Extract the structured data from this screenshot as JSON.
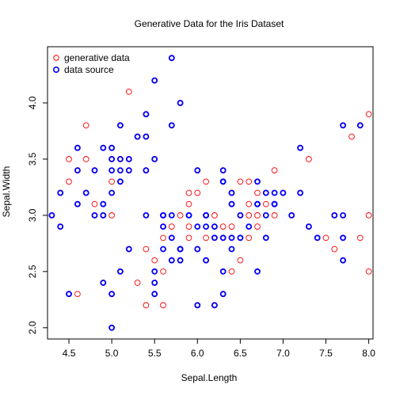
{
  "chart_data": {
    "type": "scatter",
    "title": "Generative Data for the Iris Dataset",
    "xlabel": "Sepal.Length",
    "ylabel": "Sepal.Width",
    "xlim": [
      4.25,
      8.05
    ],
    "ylim": [
      1.9,
      4.5
    ],
    "x_ticks": [
      4.5,
      5.0,
      5.5,
      6.0,
      6.5,
      7.0,
      7.5,
      8.0
    ],
    "x_tick_labels": [
      "4.5",
      "5.0",
      "5.5",
      "6.0",
      "6.5",
      "7.0",
      "7.5",
      "8.0"
    ],
    "y_ticks": [
      2.0,
      2.5,
      3.0,
      3.5,
      4.0
    ],
    "y_tick_labels": [
      "2.0",
      "2.5",
      "3.0",
      "3.5",
      "4.0"
    ],
    "grid": false,
    "legend_position": "top-left",
    "colors": {
      "generative": "#ff0000",
      "source": "#0000ff"
    },
    "series": [
      {
        "name": "generative data",
        "color": "#ff0000",
        "marker": "open-circle",
        "points": [
          [
            4.3,
            3.0
          ],
          [
            4.4,
            2.9
          ],
          [
            4.4,
            3.2
          ],
          [
            4.5,
            3.3
          ],
          [
            4.5,
            3.5
          ],
          [
            4.6,
            3.1
          ],
          [
            4.6,
            3.4
          ],
          [
            4.7,
            3.2
          ],
          [
            4.7,
            3.5
          ],
          [
            4.8,
            3.1
          ],
          [
            4.8,
            3.4
          ],
          [
            4.8,
            3.0
          ],
          [
            4.9,
            3.0
          ],
          [
            4.9,
            3.1
          ],
          [
            4.9,
            3.6
          ],
          [
            5.0,
            3.3
          ],
          [
            5.0,
            3.5
          ],
          [
            5.0,
            3.6
          ],
          [
            5.0,
            3.0
          ],
          [
            5.1,
            3.5
          ],
          [
            5.1,
            3.8
          ],
          [
            5.1,
            3.3
          ],
          [
            5.2,
            3.4
          ],
          [
            5.2,
            3.5
          ],
          [
            5.2,
            4.1
          ],
          [
            5.3,
            3.7
          ],
          [
            5.4,
            3.9
          ],
          [
            5.4,
            3.4
          ],
          [
            5.4,
            3.7
          ],
          [
            5.5,
            4.2
          ],
          [
            5.5,
            3.5
          ],
          [
            5.7,
            4.4
          ],
          [
            5.7,
            3.8
          ],
          [
            5.8,
            4.0
          ],
          [
            5.6,
            3.0
          ],
          [
            5.9,
            3.2
          ],
          [
            4.6,
            3.6
          ],
          [
            4.7,
            3.8
          ],
          [
            4.5,
            2.3
          ],
          [
            4.6,
            2.3
          ],
          [
            5.0,
            2.0
          ],
          [
            5.0,
            2.3
          ],
          [
            4.9,
            2.4
          ],
          [
            5.1,
            2.5
          ],
          [
            5.2,
            2.7
          ],
          [
            5.3,
            2.4
          ],
          [
            5.4,
            2.2
          ],
          [
            5.5,
            2.4
          ],
          [
            5.6,
            2.5
          ],
          [
            5.7,
            2.6
          ],
          [
            5.8,
            2.7
          ],
          [
            5.9,
            2.8
          ],
          [
            6.0,
            2.2
          ],
          [
            6.1,
            2.6
          ],
          [
            6.2,
            2.2
          ],
          [
            6.3,
            2.3
          ],
          [
            6.4,
            2.5
          ],
          [
            6.5,
            2.6
          ],
          [
            6.6,
            2.8
          ],
          [
            6.7,
            2.9
          ],
          [
            5.5,
            2.6
          ],
          [
            5.6,
            2.8
          ],
          [
            5.7,
            2.9
          ],
          [
            5.8,
            3.0
          ],
          [
            5.9,
            3.1
          ],
          [
            6.0,
            3.2
          ],
          [
            6.1,
            3.0
          ],
          [
            6.2,
            2.9
          ],
          [
            6.3,
            2.8
          ],
          [
            6.4,
            2.9
          ],
          [
            6.5,
            3.0
          ],
          [
            6.6,
            3.1
          ],
          [
            6.7,
            3.2
          ],
          [
            6.8,
            3.1
          ],
          [
            6.9,
            3.0
          ],
          [
            7.0,
            3.2
          ],
          [
            6.0,
            3.4
          ],
          [
            6.1,
            3.3
          ],
          [
            6.3,
            3.4
          ],
          [
            6.5,
            3.3
          ],
          [
            6.7,
            3.3
          ],
          [
            6.9,
            3.4
          ],
          [
            7.1,
            3.0
          ],
          [
            7.2,
            3.2
          ],
          [
            7.3,
            2.9
          ],
          [
            7.4,
            2.8
          ],
          [
            7.6,
            3.0
          ],
          [
            7.7,
            2.6
          ],
          [
            7.7,
            2.8
          ],
          [
            7.7,
            3.8
          ],
          [
            7.8,
            3.7
          ],
          [
            7.9,
            3.8
          ],
          [
            8.0,
            3.9
          ],
          [
            7.2,
            3.6
          ],
          [
            7.3,
            3.5
          ],
          [
            7.5,
            2.8
          ],
          [
            7.6,
            2.7
          ],
          [
            7.9,
            2.8
          ],
          [
            8.0,
            3.0
          ],
          [
            8.0,
            2.5
          ],
          [
            5.4,
            2.7
          ],
          [
            5.6,
            2.9
          ],
          [
            5.8,
            2.6
          ],
          [
            6.0,
            2.7
          ],
          [
            6.2,
            2.8
          ],
          [
            6.4,
            3.1
          ],
          [
            6.6,
            3.0
          ],
          [
            6.8,
            3.2
          ],
          [
            5.7,
            2.8
          ],
          [
            5.9,
            2.9
          ],
          [
            6.1,
            2.8
          ],
          [
            6.3,
            2.9
          ],
          [
            6.5,
            2.8
          ],
          [
            6.7,
            3.0
          ],
          [
            6.9,
            3.1
          ],
          [
            6.2,
            3.0
          ],
          [
            6.4,
            3.2
          ],
          [
            6.6,
            3.3
          ],
          [
            5.5,
            2.3
          ],
          [
            5.6,
            2.2
          ]
        ]
      },
      {
        "name": "data source",
        "color": "#0000ff",
        "marker": "open-circle",
        "points": [
          [
            5.1,
            3.5
          ],
          [
            4.9,
            3.0
          ],
          [
            4.7,
            3.2
          ],
          [
            4.6,
            3.1
          ],
          [
            5.0,
            3.6
          ],
          [
            5.4,
            3.9
          ],
          [
            4.6,
            3.4
          ],
          [
            5.0,
            3.4
          ],
          [
            4.4,
            2.9
          ],
          [
            4.9,
            3.1
          ],
          [
            5.4,
            3.7
          ],
          [
            4.8,
            3.4
          ],
          [
            4.8,
            3.0
          ],
          [
            4.3,
            3.0
          ],
          [
            5.8,
            4.0
          ],
          [
            5.7,
            4.4
          ],
          [
            5.1,
            3.8
          ],
          [
            5.7,
            3.8
          ],
          [
            5.4,
            3.4
          ],
          [
            4.6,
            3.6
          ],
          [
            5.1,
            3.3
          ],
          [
            5.2,
            3.5
          ],
          [
            5.2,
            3.4
          ],
          [
            5.5,
            4.2
          ],
          [
            5.0,
            3.2
          ],
          [
            5.5,
            3.5
          ],
          [
            4.9,
            3.6
          ],
          [
            4.4,
            3.2
          ],
          [
            5.1,
            3.4
          ],
          [
            5.0,
            3.5
          ],
          [
            4.5,
            2.3
          ],
          [
            5.3,
            3.7
          ],
          [
            5.0,
            2.3
          ],
          [
            4.9,
            2.4
          ],
          [
            5.0,
            2.0
          ],
          [
            5.2,
            2.7
          ],
          [
            7.0,
            3.2
          ],
          [
            6.4,
            3.2
          ],
          [
            6.9,
            3.1
          ],
          [
            5.5,
            2.3
          ],
          [
            6.5,
            2.8
          ],
          [
            5.7,
            2.8
          ],
          [
            6.3,
            3.3
          ],
          [
            6.6,
            2.9
          ],
          [
            5.9,
            3.0
          ],
          [
            6.0,
            2.2
          ],
          [
            6.1,
            2.9
          ],
          [
            5.6,
            2.9
          ],
          [
            6.7,
            3.1
          ],
          [
            5.6,
            3.0
          ],
          [
            5.8,
            2.7
          ],
          [
            6.2,
            2.2
          ],
          [
            6.3,
            2.5
          ],
          [
            6.8,
            2.8
          ],
          [
            6.0,
            2.9
          ],
          [
            5.7,
            2.6
          ],
          [
            5.5,
            2.4
          ],
          [
            5.8,
            2.7
          ],
          [
            6.0,
            2.7
          ],
          [
            5.4,
            3.0
          ],
          [
            6.0,
            3.4
          ],
          [
            6.7,
            3.1
          ],
          [
            6.3,
            2.3
          ],
          [
            5.6,
            3.0
          ],
          [
            5.5,
            2.5
          ],
          [
            6.1,
            3.0
          ],
          [
            5.8,
            2.6
          ],
          [
            5.6,
            2.7
          ],
          [
            5.7,
            3.0
          ],
          [
            6.2,
            2.9
          ],
          [
            5.1,
            2.5
          ],
          [
            6.3,
            3.3
          ],
          [
            7.1,
            3.0
          ],
          [
            6.5,
            3.0
          ],
          [
            7.6,
            3.0
          ],
          [
            7.3,
            2.9
          ],
          [
            6.7,
            2.5
          ],
          [
            7.2,
            3.6
          ],
          [
            6.4,
            2.7
          ],
          [
            6.8,
            3.0
          ],
          [
            6.4,
            2.8
          ],
          [
            7.7,
            3.8
          ],
          [
            7.7,
            2.6
          ],
          [
            6.9,
            3.2
          ],
          [
            7.7,
            2.8
          ],
          [
            6.7,
            3.3
          ],
          [
            7.2,
            3.2
          ],
          [
            6.2,
            2.8
          ],
          [
            6.1,
            3.0
          ],
          [
            7.4,
            2.8
          ],
          [
            7.9,
            3.8
          ],
          [
            6.3,
            2.8
          ],
          [
            6.1,
            2.6
          ],
          [
            7.7,
            3.0
          ],
          [
            6.3,
            3.4
          ],
          [
            6.4,
            3.1
          ],
          [
            6.9,
            3.1
          ],
          [
            5.8,
            2.7
          ],
          [
            6.8,
            3.2
          ],
          [
            5.9,
            3.0
          ]
        ]
      }
    ]
  }
}
